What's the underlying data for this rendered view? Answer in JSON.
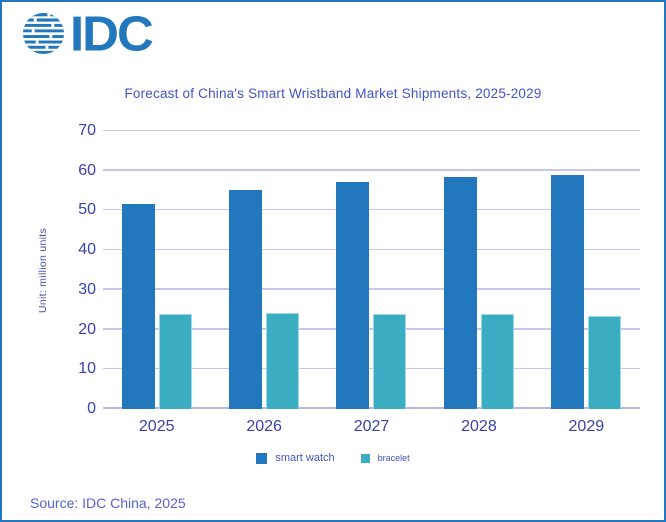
{
  "logo": {
    "text": "IDC",
    "icon": "idc-globe-icon"
  },
  "source_note": "Source: IDC China, 2025",
  "colors": {
    "brand_blue": "#2277bd",
    "bar_smart_watch": "#2277bd",
    "bar_bracelet": "#3aadc2",
    "gridline": "#c6c7ee",
    "baseline": "#b7b9e2",
    "title_text": "#4353c6",
    "tick_text": "#3a41a8",
    "legend_text": "#4353c0",
    "ylabel_text": "#4a4fae",
    "source_text": "#5a5fd0",
    "teal_swatch_border": "#9ed7e6"
  },
  "chart_data": {
    "type": "bar",
    "title": "Forecast of China's Smart Wristband Market Shipments, 2025-2029",
    "ylabel": "Unit: million units",
    "xlabel": "",
    "categories": [
      "2025",
      "2026",
      "2027",
      "2028",
      "2029"
    ],
    "series": [
      {
        "name": "smart watch",
        "color": "#2277bd",
        "values": [
          51.5,
          55.1,
          57.2,
          58.3,
          58.9
        ]
      },
      {
        "name": "bracelet",
        "color": "#3aadc2",
        "values": [
          24.0,
          24.1,
          24.0,
          23.9,
          23.4
        ]
      }
    ],
    "ylim": [
      0,
      70
    ],
    "ytick_step": 10,
    "grid": true,
    "legend_position": "bottom"
  }
}
